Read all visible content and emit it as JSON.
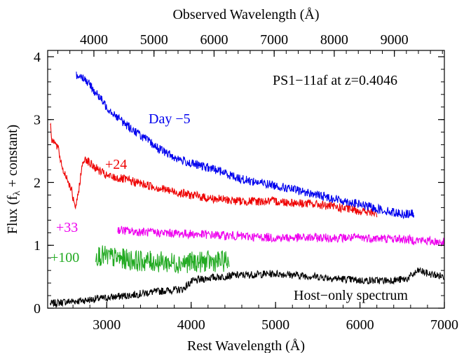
{
  "chart_data": {
    "type": "line",
    "title": "",
    "xlabel": "Rest Wavelength (Å)",
    "ylabel_parts": [
      "Flux (f",
      "λ",
      " + constant)"
    ],
    "top_axis_label": "Observed Wavelength (Å)",
    "annotation": "PS1−11af at z=0.4046",
    "redshift": 0.4046,
    "xlim": [
      2300,
      7000
    ],
    "ylim": [
      0,
      4.1
    ],
    "x_ticks": [
      3000,
      4000,
      5000,
      6000,
      7000
    ],
    "x_tick_labels": [
      "3000",
      "4000",
      "5000",
      "6000",
      "7000"
    ],
    "y_ticks": [
      0,
      1,
      2,
      3,
      4
    ],
    "y_tick_labels": [
      "0",
      "1",
      "2",
      "3",
      "4"
    ],
    "top_ticks": [
      4000,
      5000,
      6000,
      7000,
      8000,
      9000
    ],
    "top_tick_labels": [
      "4000",
      "5000",
      "6000",
      "7000",
      "8000",
      "9000"
    ],
    "grid": false,
    "series": [
      {
        "name": "Host−only spectrum",
        "label_position": "bottom-right",
        "color": "#000000",
        "noise": 0.06,
        "x": [
          2330,
          2500,
          2700,
          2900,
          3100,
          3300,
          3500,
          3700,
          3900,
          3950,
          4000,
          4200,
          4500,
          5000,
          5500,
          6000,
          6300,
          6550,
          6700,
          6800,
          7000
        ],
        "y": [
          0.07,
          0.1,
          0.12,
          0.15,
          0.18,
          0.21,
          0.25,
          0.28,
          0.3,
          0.36,
          0.42,
          0.48,
          0.52,
          0.55,
          0.5,
          0.44,
          0.44,
          0.46,
          0.6,
          0.55,
          0.5
        ]
      },
      {
        "name": "+100",
        "label_position": "left",
        "color": "#22aa22",
        "noise": 0.17,
        "x": [
          2870,
          3000,
          3200,
          3400,
          3600,
          3800,
          4000,
          4200,
          4450
        ],
        "y": [
          0.85,
          0.82,
          0.78,
          0.75,
          0.74,
          0.72,
          0.73,
          0.74,
          0.75
        ]
      },
      {
        "name": "+33",
        "label_position": "left",
        "color": "#ee00ee",
        "noise": 0.07,
        "x": [
          3130,
          3300,
          3600,
          4000,
          4500,
          5000,
          5500,
          6000,
          6500,
          7000
        ],
        "y": [
          1.25,
          1.22,
          1.2,
          1.18,
          1.15,
          1.12,
          1.12,
          1.12,
          1.1,
          1.05
        ]
      },
      {
        "name": "+24",
        "label_position": "upper-left",
        "color": "#ee0000",
        "noise": 0.07,
        "x": [
          2330,
          2350,
          2420,
          2480,
          2520,
          2580,
          2620,
          2650,
          2700,
          2740,
          2800,
          2900,
          3000,
          3200,
          3500,
          3800,
          4000,
          4200,
          4600,
          5000,
          5500,
          6000,
          6200
        ],
        "y": [
          2.95,
          2.7,
          2.55,
          2.2,
          2.1,
          1.9,
          1.6,
          1.7,
          2.2,
          2.4,
          2.3,
          2.2,
          2.1,
          2.05,
          1.95,
          1.85,
          1.8,
          1.75,
          1.7,
          1.7,
          1.65,
          1.55,
          1.5
        ]
      },
      {
        "name": "Day −5",
        "label_position": "upper",
        "color": "#0000ee",
        "noise": 0.07,
        "x": [
          2640,
          2700,
          2800,
          3000,
          3200,
          3400,
          3600,
          3800,
          4000,
          4300,
          4600,
          5000,
          5500,
          6000,
          6300,
          6500,
          6640
        ],
        "y": [
          3.7,
          3.7,
          3.55,
          3.2,
          2.95,
          2.75,
          2.55,
          2.4,
          2.3,
          2.2,
          2.05,
          1.95,
          1.8,
          1.65,
          1.55,
          1.5,
          1.5
        ]
      }
    ]
  }
}
